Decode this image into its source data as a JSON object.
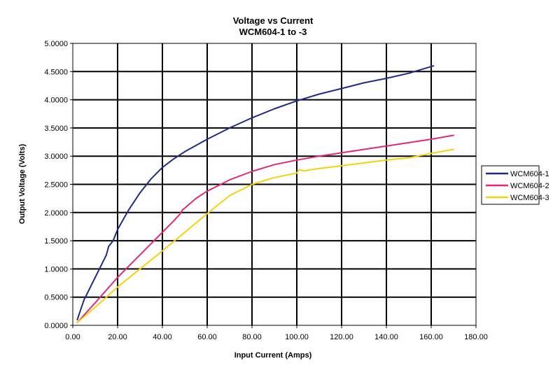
{
  "chart_data": {
    "type": "line",
    "title": "Voltage vs Current",
    "subtitle": "WCM604-1 to -3",
    "xlabel": "Input Current (Amps)",
    "ylabel": "Output Voltage (Volts)",
    "xlim": [
      0,
      180
    ],
    "ylim": [
      0,
      5
    ],
    "xticks": [
      0,
      20,
      40,
      60,
      80,
      100,
      120,
      140,
      160,
      180
    ],
    "yticks": [
      0,
      0.5,
      1,
      1.5,
      2,
      2.5,
      3,
      3.5,
      4,
      4.5,
      5
    ],
    "xtick_labels": [
      "0.00",
      "20.00",
      "40.00",
      "60.00",
      "80.00",
      "100.00",
      "120.00",
      "140.00",
      "160.00",
      "180.00"
    ],
    "ytick_labels": [
      "0.0000",
      "0.5000",
      "1.0000",
      "1.5000",
      "2.0000",
      "2.5000",
      "3.0000",
      "3.5000",
      "4.0000",
      "4.5000",
      "5.0000"
    ],
    "grid": true,
    "legend_position": "right",
    "series": [
      {
        "name": "WCM604-1",
        "color": "#1f2a8c",
        "x": [
          2,
          5,
          10,
          15,
          16,
          18,
          20,
          25,
          30,
          35,
          40,
          45,
          50,
          60,
          70,
          80,
          90,
          100,
          110,
          120,
          130,
          140,
          150,
          161
        ],
        "y": [
          0.1,
          0.45,
          0.85,
          1.25,
          1.4,
          1.5,
          1.7,
          2.05,
          2.35,
          2.6,
          2.8,
          2.95,
          3.08,
          3.3,
          3.5,
          3.68,
          3.84,
          3.98,
          4.1,
          4.2,
          4.3,
          4.38,
          4.47,
          4.6
        ]
      },
      {
        "name": "WCM604-2",
        "color": "#e0297a",
        "x": [
          2,
          10,
          20,
          30,
          40,
          45,
          48,
          49,
          50,
          55,
          60,
          70,
          80,
          90,
          100,
          110,
          120,
          130,
          140,
          150,
          160,
          170
        ],
        "y": [
          0.05,
          0.4,
          0.85,
          1.25,
          1.65,
          1.85,
          1.98,
          2.05,
          2.08,
          2.25,
          2.38,
          2.58,
          2.73,
          2.85,
          2.93,
          3.0,
          3.06,
          3.12,
          3.18,
          3.24,
          3.3,
          3.37
        ]
      },
      {
        "name": "WCM604-3",
        "color": "#f5d20a",
        "x": [
          2,
          10,
          20,
          30,
          40,
          50,
          60,
          70,
          80,
          90,
          100,
          101,
          103,
          110,
          120,
          130,
          140,
          150,
          160,
          170
        ],
        "y": [
          0.05,
          0.32,
          0.68,
          1.0,
          1.32,
          1.65,
          1.98,
          2.3,
          2.5,
          2.62,
          2.7,
          2.76,
          2.74,
          2.78,
          2.83,
          2.88,
          2.93,
          2.97,
          3.05,
          3.12
        ]
      }
    ]
  }
}
